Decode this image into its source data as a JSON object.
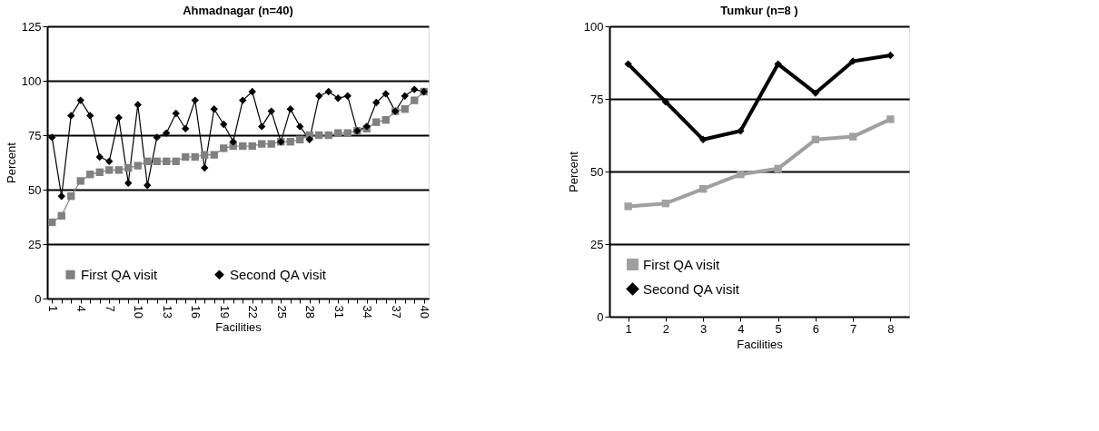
{
  "chart_data": [
    {
      "type": "line",
      "title": "Ahmadnagar (n=40)",
      "xlabel": "Facilities",
      "ylabel": "Percent",
      "categories": [
        "1",
        null,
        null,
        "4",
        null,
        null,
        "7",
        null,
        null,
        "10",
        null,
        null,
        "13",
        null,
        null,
        "16",
        null,
        null,
        "19",
        null,
        null,
        "22",
        null,
        null,
        "25",
        null,
        null,
        "28",
        null,
        null,
        "31",
        null,
        null,
        "34",
        null,
        null,
        "37",
        null,
        null,
        "40"
      ],
      "series": [
        {
          "name": "First QA visit",
          "color": "#808080",
          "marker": "square",
          "values": [
            35,
            38,
            47,
            54,
            57,
            58,
            59,
            59,
            60,
            61,
            63,
            63,
            63,
            63,
            65,
            65,
            66,
            66,
            69,
            70,
            70,
            70,
            71,
            71,
            72,
            72,
            73,
            75,
            75,
            75,
            76,
            76,
            77,
            78,
            81,
            82,
            86,
            87,
            91,
            95
          ]
        },
        {
          "name": "Second QA visit",
          "color": "#000000",
          "marker": "diamond",
          "values": [
            74,
            47,
            84,
            91,
            84,
            65,
            63,
            83,
            53,
            89,
            52,
            74,
            76,
            85,
            78,
            91,
            60,
            87,
            80,
            72,
            91,
            95,
            79,
            86,
            72,
            87,
            79,
            73,
            93,
            95,
            92,
            93,
            77,
            79,
            90,
            94,
            86,
            93,
            96,
            95
          ]
        }
      ],
      "ylim": [
        0,
        125
      ],
      "yticks": [
        0,
        25,
        50,
        75,
        100,
        125
      ],
      "grid": "y",
      "legend": "bottom"
    },
    {
      "type": "line",
      "title": "Tumkur (n=8 )",
      "xlabel": "Facilities",
      "ylabel": "Percent",
      "categories": [
        "1",
        "2",
        "3",
        "4",
        "5",
        "6",
        "7",
        "8"
      ],
      "series": [
        {
          "name": "First QA visit",
          "color": "#a0a0a0",
          "marker": "square",
          "values": [
            38,
            39,
            44,
            49,
            51,
            61,
            62,
            68
          ]
        },
        {
          "name": "Second QA visit",
          "color": "#000000",
          "marker": "diamond",
          "values": [
            87,
            74,
            61,
            64,
            87,
            77,
            88,
            90
          ]
        }
      ],
      "ylim": [
        0,
        100
      ],
      "yticks": [
        0,
        25,
        50,
        75,
        100
      ],
      "grid": "y",
      "legend": "bottom left"
    }
  ]
}
